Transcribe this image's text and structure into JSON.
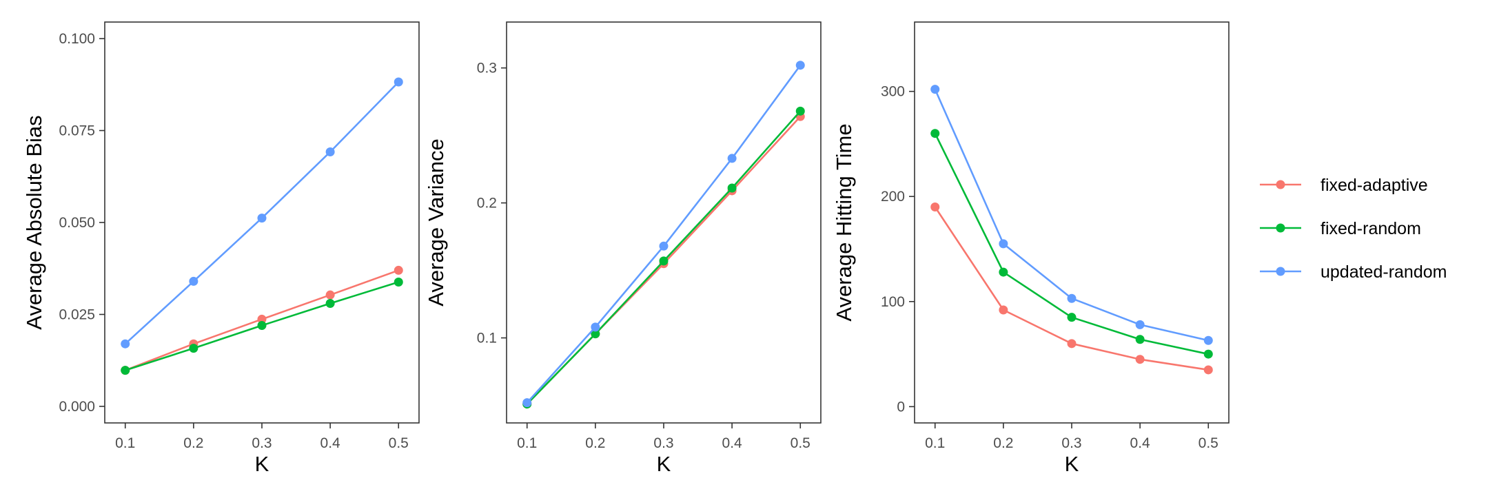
{
  "legend": {
    "entries": [
      {
        "label": "fixed-adaptive",
        "color": "#F8766D"
      },
      {
        "label": "fixed-random",
        "color": "#00BA38"
      },
      {
        "label": "updated-random",
        "color": "#619CFF"
      }
    ]
  },
  "chart_data": [
    {
      "type": "line",
      "title": "",
      "xlabel": "K",
      "ylabel": "Average Absolute Bias",
      "x": [
        0.1,
        0.2,
        0.3,
        0.4,
        0.5
      ],
      "x_tick_labels": [
        "0.1",
        "0.2",
        "0.3",
        "0.4",
        "0.5"
      ],
      "xlim": [
        0.07,
        0.53
      ],
      "ylim": [
        -0.0045,
        0.1045
      ],
      "y_ticks": [
        0.0,
        0.025,
        0.05,
        0.075,
        0.1
      ],
      "y_tick_labels": [
        "0.000",
        "0.025",
        "0.050",
        "0.075",
        "0.100"
      ],
      "grid": false,
      "series": [
        {
          "name": "fixed-adaptive",
          "color": "#F8766D",
          "values": [
            0.0098,
            0.017,
            0.0237,
            0.0303,
            0.037
          ]
        },
        {
          "name": "fixed-random",
          "color": "#00BA38",
          "values": [
            0.0098,
            0.0158,
            0.022,
            0.028,
            0.0338
          ]
        },
        {
          "name": "updated-random",
          "color": "#619CFF",
          "values": [
            0.017,
            0.034,
            0.0512,
            0.0692,
            0.0882
          ]
        }
      ]
    },
    {
      "type": "line",
      "title": "",
      "xlabel": "K",
      "ylabel": "Average Variance",
      "x": [
        0.1,
        0.2,
        0.3,
        0.4,
        0.5
      ],
      "x_tick_labels": [
        "0.1",
        "0.2",
        "0.3",
        "0.4",
        "0.5"
      ],
      "xlim": [
        0.07,
        0.53
      ],
      "ylim": [
        0.037,
        0.334
      ],
      "y_ticks": [
        0.1,
        0.2,
        0.3
      ],
      "y_tick_labels": [
        "0.1",
        "0.2",
        "0.3"
      ],
      "grid": false,
      "series": [
        {
          "name": "fixed-adaptive",
          "color": "#F8766D",
          "values": [
            0.051,
            0.103,
            0.155,
            0.209,
            0.264
          ]
        },
        {
          "name": "fixed-random",
          "color": "#00BA38",
          "values": [
            0.051,
            0.103,
            0.157,
            0.211,
            0.268
          ]
        },
        {
          "name": "updated-random",
          "color": "#619CFF",
          "values": [
            0.052,
            0.108,
            0.168,
            0.233,
            0.302
          ]
        }
      ]
    },
    {
      "type": "line",
      "title": "",
      "xlabel": "K",
      "ylabel": "Average Hitting Time",
      "x": [
        0.1,
        0.2,
        0.3,
        0.4,
        0.5
      ],
      "x_tick_labels": [
        "0.1",
        "0.2",
        "0.3",
        "0.4",
        "0.5"
      ],
      "xlim": [
        0.07,
        0.53
      ],
      "ylim": [
        -15.5,
        366
      ],
      "y_ticks": [
        0,
        100,
        200,
        300
      ],
      "y_tick_labels": [
        "0",
        "100",
        "200",
        "300"
      ],
      "grid": false,
      "series": [
        {
          "name": "fixed-adaptive",
          "color": "#F8766D",
          "values": [
            190,
            92,
            60,
            45,
            35
          ]
        },
        {
          "name": "fixed-random",
          "color": "#00BA38",
          "values": [
            260,
            128,
            85,
            64,
            50
          ]
        },
        {
          "name": "updated-random",
          "color": "#619CFF",
          "values": [
            302,
            155,
            103,
            78,
            63
          ]
        }
      ]
    }
  ]
}
